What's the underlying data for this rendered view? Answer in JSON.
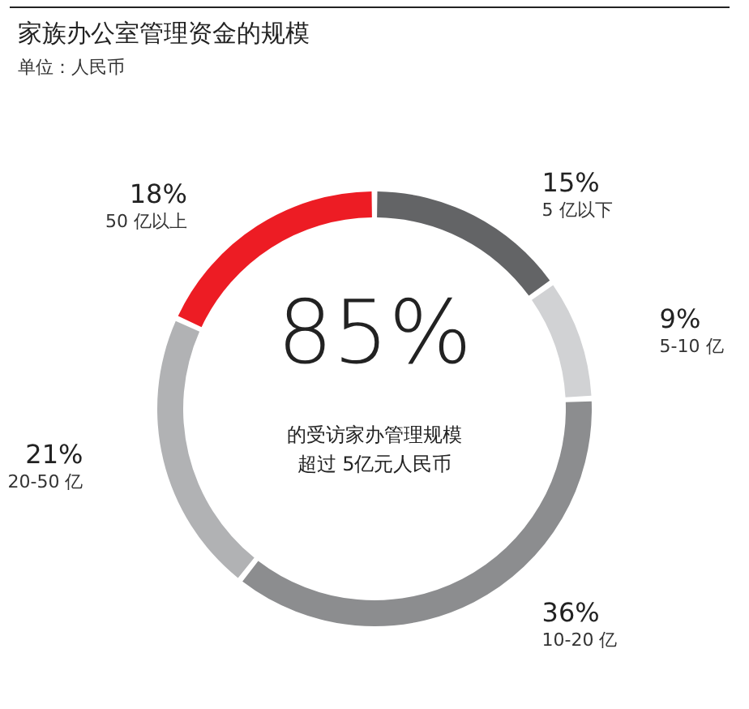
{
  "chart_data": {
    "type": "donut",
    "title": "家族办公室管理资金的规模",
    "subtitle": "单位：人民币",
    "categories": [
      "5 亿以下",
      "5-10 亿",
      "10-20 亿",
      "20-50 亿",
      "50 亿以上"
    ],
    "values": [
      15,
      9,
      36,
      21,
      18
    ],
    "colors": [
      "#636466",
      "#d1d2d4",
      "#8c8d8f",
      "#b1b2b4",
      "#ed1c24"
    ],
    "value_labels": [
      "15%",
      "9%",
      "36%",
      "21%",
      "18%"
    ],
    "legend": false,
    "annotations": [
      "85%",
      "的受访家办管理规模",
      "超过 5亿元人民币"
    ]
  }
}
